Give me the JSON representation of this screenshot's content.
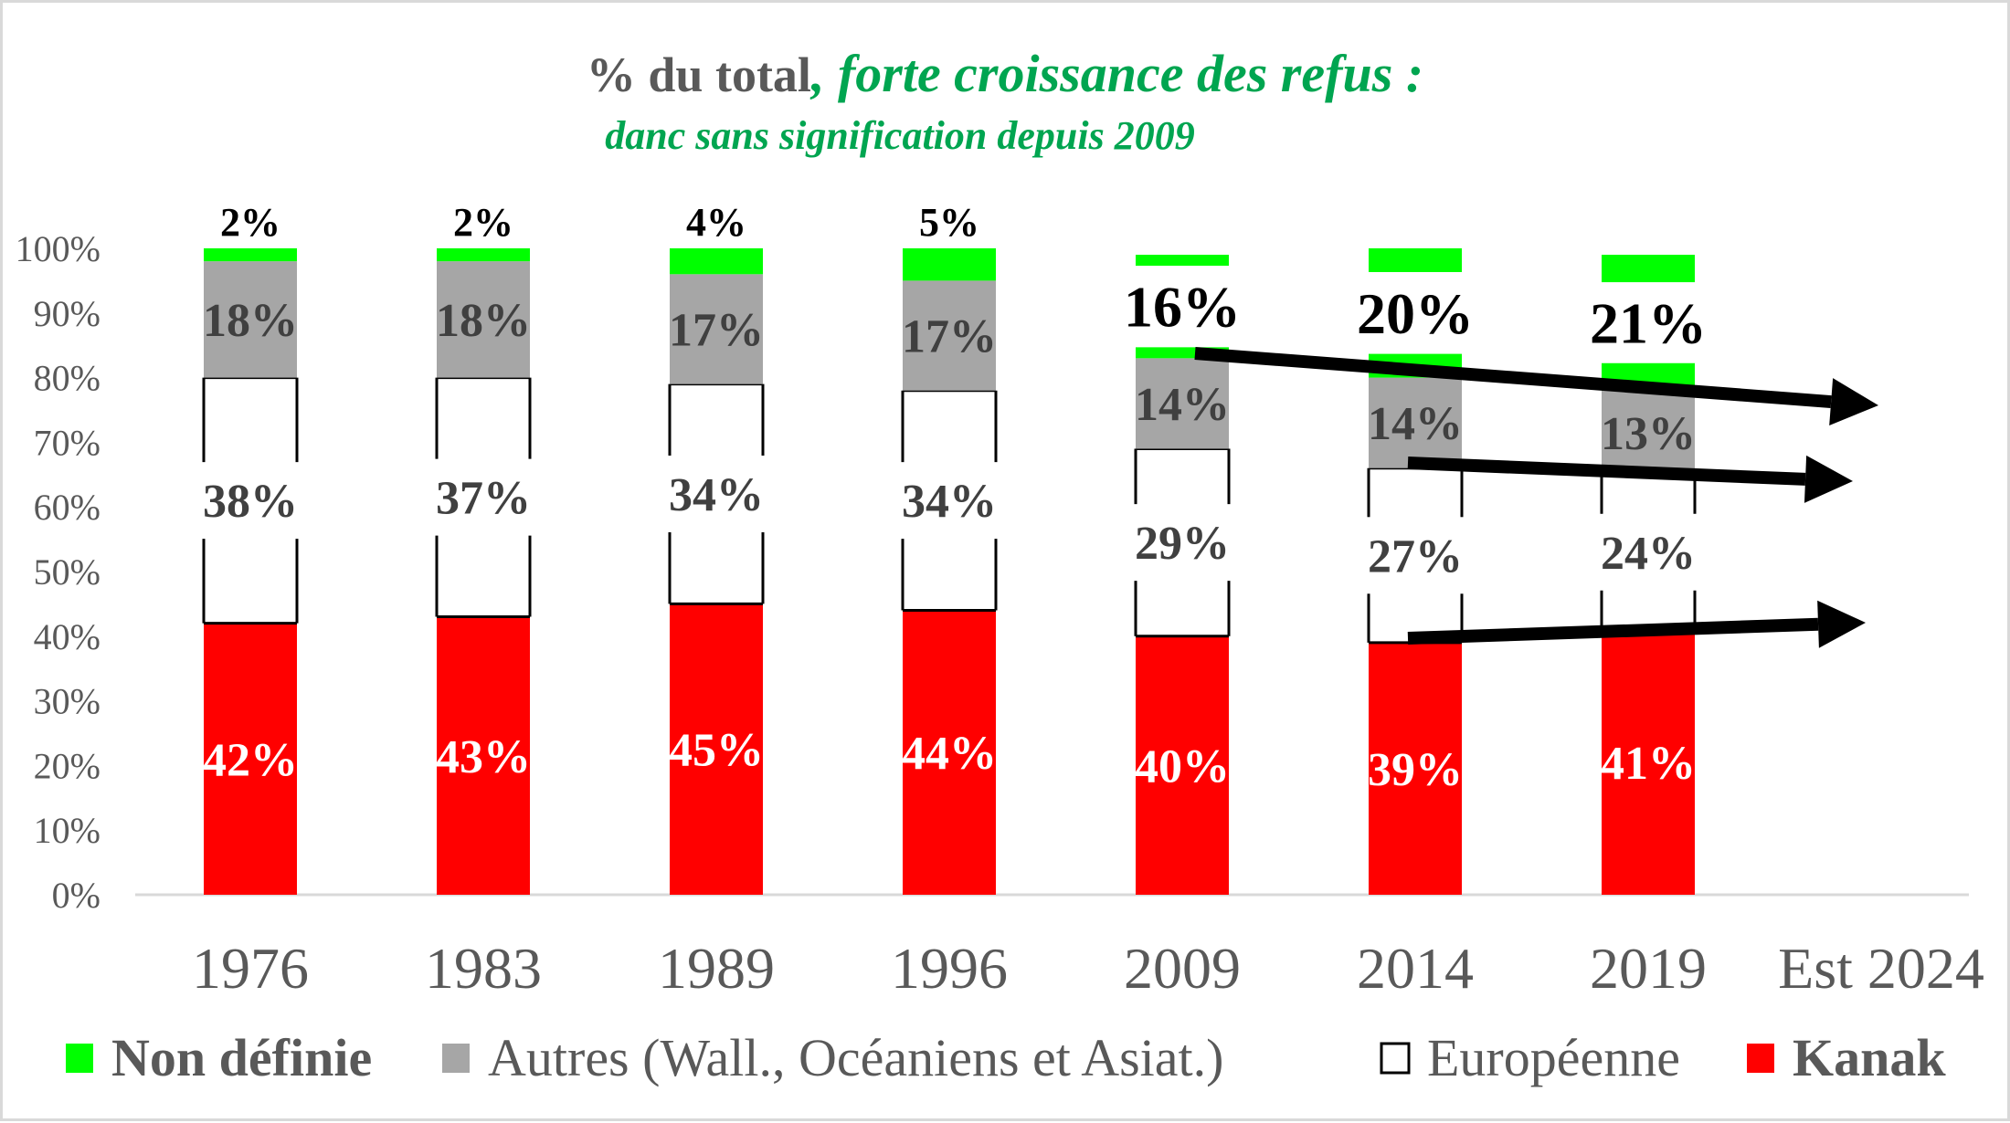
{
  "chart_data": {
    "type": "bar",
    "stacked": true,
    "title_parts": {
      "plain": "% du total",
      "italic": ", forte croissance des refus :"
    },
    "subtitle": "danc sans signification depuis 2009",
    "categories": [
      "1976",
      "1983",
      "1989",
      "1996",
      "2009",
      "2014",
      "2019",
      "Est 2024"
    ],
    "ylim": [
      0,
      100
    ],
    "yticks": [
      "0%",
      "10%",
      "20%",
      "30%",
      "40%",
      "50%",
      "60%",
      "70%",
      "80%",
      "90%",
      "100%"
    ],
    "series": [
      {
        "name": "Kanak",
        "color": "#ff0000",
        "values": [
          42,
          43,
          45,
          44,
          40,
          39,
          41,
          null
        ],
        "labels": [
          "42%",
          "43%",
          "45%",
          "44%",
          "40%",
          "39%",
          "41%",
          ""
        ]
      },
      {
        "name": "Européenne",
        "color": "#ffffff",
        "values": [
          38,
          37,
          34,
          34,
          29,
          27,
          24,
          null
        ],
        "labels": [
          "38%",
          "37%",
          "34%",
          "34%",
          "29%",
          "27%",
          "24%",
          ""
        ]
      },
      {
        "name": "Autres (Wall., Océaniens et Asiat.)",
        "color": "#a6a6a6",
        "values": [
          18,
          18,
          17,
          17,
          14,
          14,
          13,
          null
        ],
        "labels": [
          "18%",
          "18%",
          "17%",
          "17%",
          "14%",
          "14%",
          "13%",
          ""
        ]
      },
      {
        "name": "Non définie",
        "color": "#00ff00",
        "values": [
          2,
          2,
          4,
          5,
          16,
          20,
          21,
          null
        ],
        "labels": [
          "2%",
          "2%",
          "4%",
          "5%",
          "16%",
          "20%",
          "21%",
          ""
        ]
      }
    ],
    "legend": {
      "position": "bottom",
      "items": [
        {
          "label": "Non définie",
          "color": "#00ff00",
          "bold": true
        },
        {
          "label": "Autres (Wall., Océaniens et Asiat.)",
          "color": "#a6a6a6",
          "bold": false
        },
        {
          "label": "Européenne",
          "color": "#ffffff",
          "bold": false
        },
        {
          "label": "Kanak",
          "color": "#ff0000",
          "bold": true
        }
      ]
    },
    "annotations": [
      {
        "type": "trend-arrow",
        "from_category": "2009",
        "to_category": "Est 2024",
        "series": "Autres (Wall., Océaniens et Asiat.)",
        "direction": "down"
      },
      {
        "type": "trend-arrow",
        "from_category": "2014",
        "to_category": "Est 2024",
        "series": "Européenne",
        "direction": "flat"
      },
      {
        "type": "trend-arrow",
        "from_category": "2014",
        "to_category": "Est 2024",
        "series": "Kanak",
        "direction": "up"
      }
    ],
    "grid": false,
    "xlabel": "",
    "ylabel": ""
  }
}
